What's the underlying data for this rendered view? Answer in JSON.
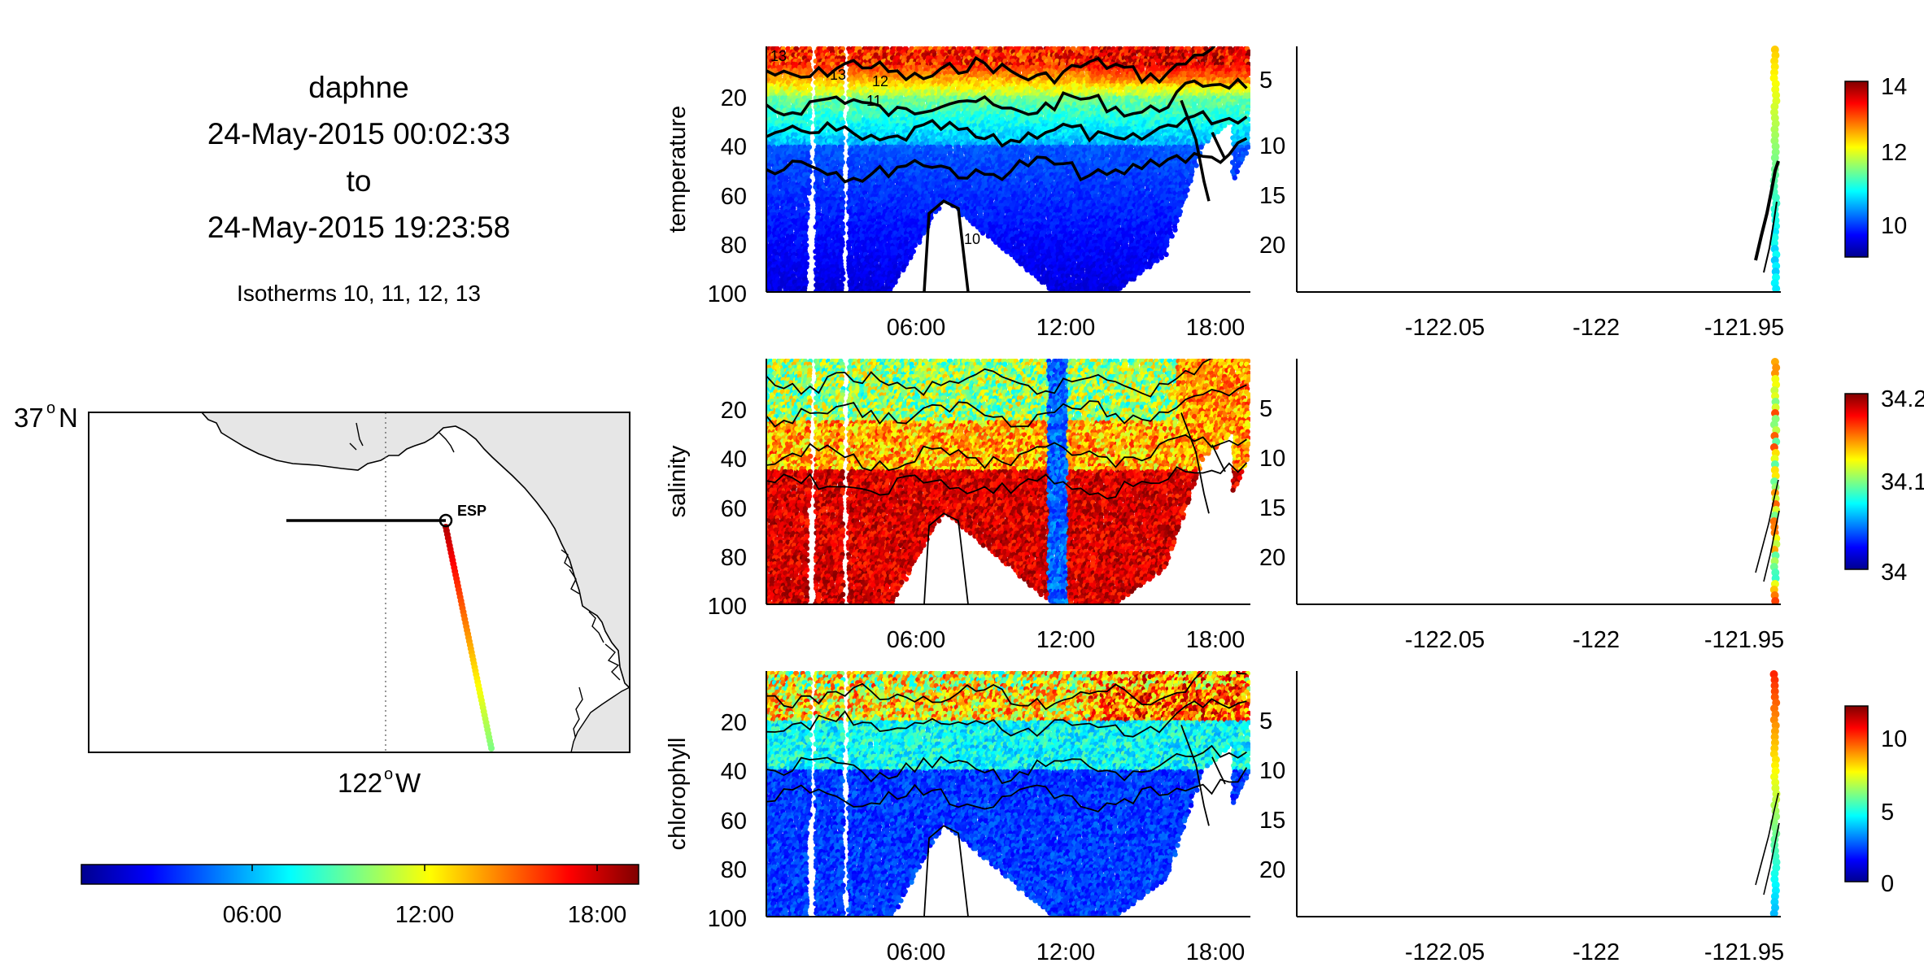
{
  "header": {
    "vehicle": "daphne",
    "start": "24-May-2015 00:02:33",
    "to": "to",
    "end": "24-May-2015 19:23:58",
    "isotherms": "Isotherms 10, 11, 12, 13"
  },
  "map": {
    "lat_label": "37",
    "lat_hemi": "N",
    "lon_label": "122",
    "lon_hemi": "W",
    "degree_sign": "o",
    "station_label": "ESP",
    "land_color": "#e6e6e6"
  },
  "colors": {
    "jet": [
      "#00008f",
      "#0000ff",
      "#0080ff",
      "#00ffff",
      "#80ff80",
      "#ffff00",
      "#ff8000",
      "#ff0000",
      "#800000"
    ]
  },
  "chart_data": [
    {
      "type": "scatter",
      "name": "time-colorbar",
      "tick_labels": [
        "06:00",
        "12:00",
        "18:00"
      ],
      "range": [
        0,
        19.4
      ]
    },
    {
      "type": "heatmap",
      "name": "temperature-section",
      "ylabel": "temperature",
      "x_tick_labels": [
        "06:00",
        "12:00",
        "18:00"
      ],
      "y_tick_labels": [
        "20",
        "40",
        "60",
        "80",
        "100"
      ],
      "ylim": [
        100,
        0
      ],
      "xlim": [
        0,
        19.4
      ],
      "contour_labels": [
        "13",
        "12",
        "11",
        "10",
        "13"
      ]
    },
    {
      "type": "scatter",
      "name": "temperature-profile",
      "x_tick_labels": [
        "-122.05",
        "-122",
        "-121.95"
      ],
      "y_tick_labels": [
        "5",
        "10",
        "15",
        "20"
      ],
      "colorbar": {
        "min": 9,
        "max": 14.3,
        "tick_labels": [
          "14",
          "12",
          "10"
        ]
      }
    },
    {
      "type": "heatmap",
      "name": "salinity-section",
      "ylabel": "salinity",
      "x_tick_labels": [
        "06:00",
        "12:00",
        "18:00"
      ],
      "y_tick_labels": [
        "20",
        "40",
        "60",
        "80",
        "100"
      ],
      "ylim": [
        100,
        0
      ],
      "xlim": [
        0,
        19.4
      ]
    },
    {
      "type": "scatter",
      "name": "salinity-profile",
      "x_tick_labels": [
        "-122.05",
        "-122",
        "-121.95"
      ],
      "y_tick_labels": [
        "5",
        "10",
        "15",
        "20"
      ],
      "colorbar": {
        "min": 34,
        "max": 34.2,
        "tick_labels": [
          "34.2",
          "34.1",
          "34"
        ]
      }
    },
    {
      "type": "heatmap",
      "name": "chlorophyll-section",
      "ylabel": "chlorophyll",
      "x_tick_labels": [
        "06:00",
        "12:00",
        "18:00"
      ],
      "y_tick_labels": [
        "20",
        "40",
        "60",
        "80",
        "100"
      ],
      "ylim": [
        100,
        0
      ],
      "xlim": [
        0,
        19.4
      ]
    },
    {
      "type": "scatter",
      "name": "chlorophyll-profile",
      "x_tick_labels": [
        "-122.05",
        "-122",
        "-121.95"
      ],
      "y_tick_labels": [
        "5",
        "10",
        "15",
        "20"
      ],
      "colorbar": {
        "min": 0,
        "max": 12,
        "tick_labels": [
          "10",
          "5",
          "0"
        ]
      }
    }
  ]
}
